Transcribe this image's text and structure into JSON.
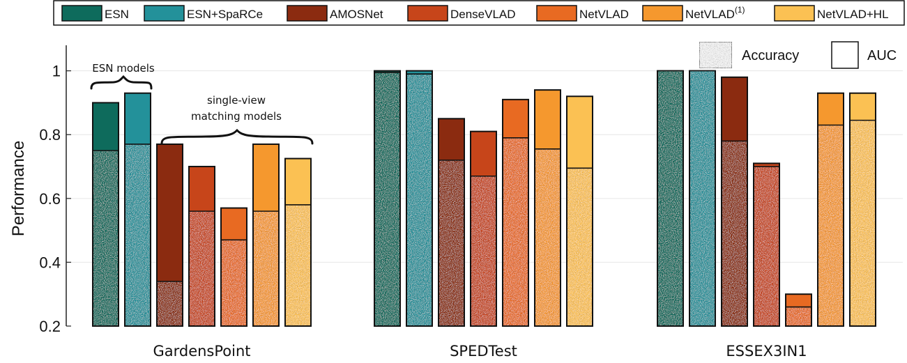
{
  "chart_data": {
    "type": "bar",
    "ylabel": "Performance",
    "ylim": [
      0.2,
      1.08
    ],
    "yticks": [
      "0.2",
      "0.4",
      "0.6",
      "0.8",
      "1"
    ],
    "grid": "horizontal",
    "legend_position": "top",
    "categories": [
      "GardensPoint",
      "SPEDTest",
      "ESSEX3IN1"
    ],
    "series": [
      {
        "name": "ESN",
        "color": "#0e6b5c",
        "accuracy": [
          0.75,
          0.995,
          1.0
        ],
        "auc": [
          0.9,
          1.0,
          1.0
        ]
      },
      {
        "name": "ESN+SpaRCe",
        "color": "#23919a",
        "accuracy": [
          0.77,
          0.99,
          1.0
        ],
        "auc": [
          0.93,
          1.0,
          1.0
        ]
      },
      {
        "name": "AMOSNet",
        "color": "#8b2b10",
        "accuracy": [
          0.34,
          0.72,
          0.78
        ],
        "auc": [
          0.77,
          0.85,
          0.98
        ]
      },
      {
        "name": "DenseVLAD",
        "color": "#c7451a",
        "accuracy": [
          0.56,
          0.67,
          0.7
        ],
        "auc": [
          0.7,
          0.81,
          0.71
        ]
      },
      {
        "name": "NetVLAD",
        "color": "#e86a22",
        "accuracy": [
          0.47,
          0.79,
          0.26
        ],
        "auc": [
          0.57,
          0.91,
          0.3
        ]
      },
      {
        "name": "NetVLAD(1)",
        "legend_base": "NetVLAD",
        "legend_sup": "(1)",
        "color": "#f5982e",
        "accuracy": [
          0.56,
          0.755,
          0.83
        ],
        "auc": [
          0.77,
          0.94,
          0.93
        ]
      },
      {
        "name": "NetVLAD+HL",
        "color": "#fbc153",
        "accuracy": [
          0.58,
          0.695,
          0.845
        ],
        "auc": [
          0.725,
          0.92,
          0.93
        ]
      }
    ],
    "metric_legend": [
      {
        "label": "Accuracy",
        "style": "speckled"
      },
      {
        "label": "AUC",
        "style": "plain"
      }
    ],
    "annotations": [
      {
        "text": "ESN models"
      },
      {
        "text": [
          "single-view",
          "matching models"
        ]
      }
    ]
  }
}
